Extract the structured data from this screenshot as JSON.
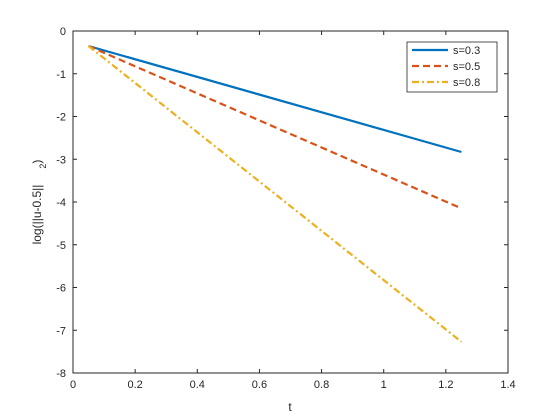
{
  "chart_data": {
    "type": "line",
    "xlabel": "t",
    "ylabel": "log(||u-0.5||",
    "ylabel_subscript": "2",
    "ylabel_close": ")",
    "xlim": [
      0,
      1.4
    ],
    "ylim": [
      -8,
      0
    ],
    "xticks": [
      0,
      0.2,
      0.4,
      0.6,
      0.8,
      1,
      1.2,
      1.4
    ],
    "xtick_labels": [
      "0",
      "0.2",
      "0.4",
      "0.6",
      "0.8",
      "1",
      "1.2",
      "1.4"
    ],
    "yticks": [
      0,
      -1,
      -2,
      -3,
      -4,
      -5,
      -6,
      -7,
      -8
    ],
    "ytick_labels": [
      "0",
      "-1",
      "-2",
      "-3",
      "-4",
      "-5",
      "-6",
      "-7",
      "-8"
    ],
    "grid": false,
    "legend_position": "top-right",
    "series": [
      {
        "name": "s=0.3",
        "color": "#0072BD",
        "style": "solid",
        "x": [
          0.05,
          1.25
        ],
        "y": [
          -0.35,
          -2.83
        ]
      },
      {
        "name": "s=0.5",
        "color": "#D95319",
        "style": "dashed",
        "x": [
          0.05,
          1.25
        ],
        "y": [
          -0.35,
          -4.15
        ]
      },
      {
        "name": "s=0.8",
        "color": "#EDB120",
        "style": "dashdot",
        "x": [
          0.05,
          1.25
        ],
        "y": [
          -0.35,
          -7.27
        ]
      }
    ]
  }
}
